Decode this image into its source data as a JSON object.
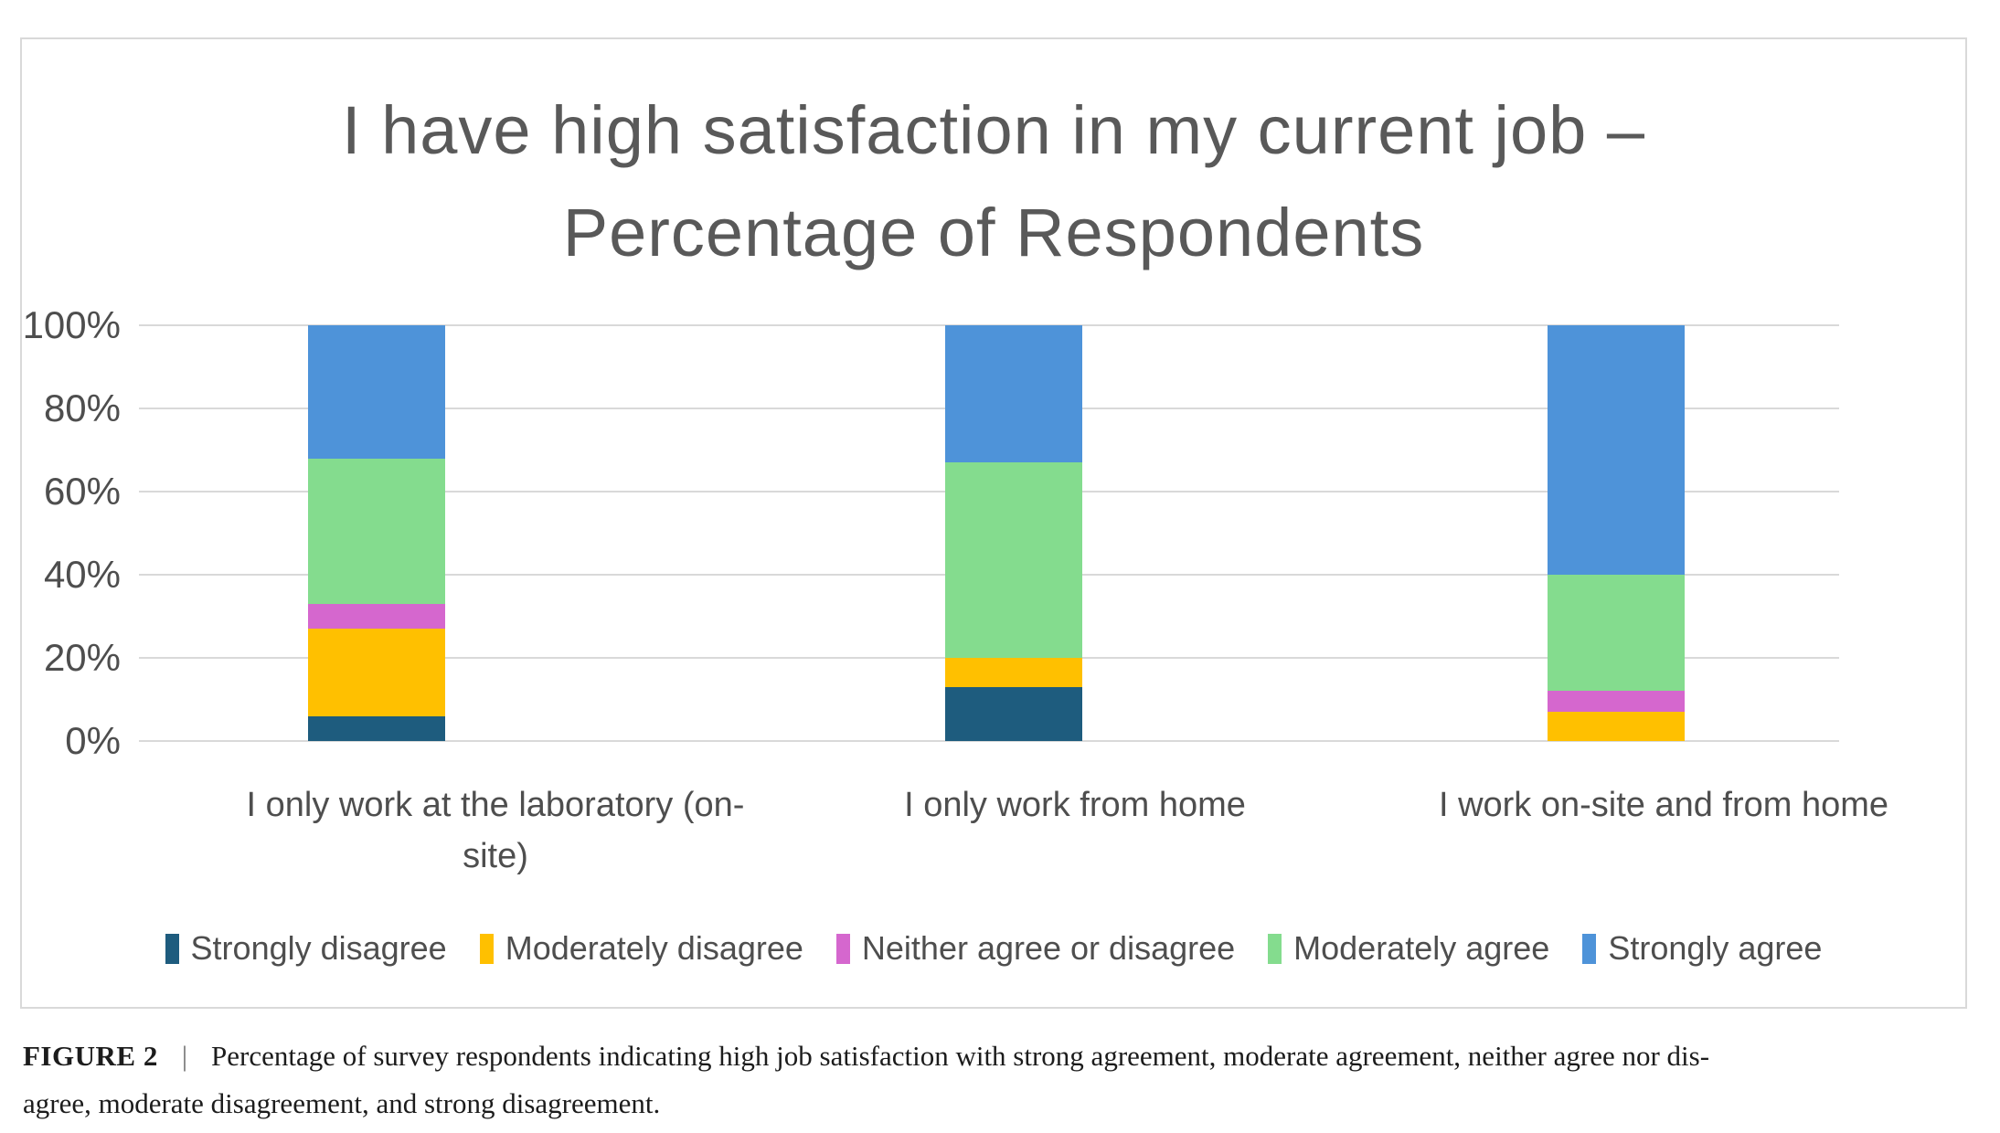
{
  "chart_data": {
    "type": "bar",
    "stacked": true,
    "units": "percent",
    "title": "I have high satisfaction in my current job – Percentage of Respondents",
    "title_lines": [
      "I have high satisfaction in my current job –",
      "Percentage of Respondents"
    ],
    "categories": [
      {
        "label": "I only work at the laboratory (on-site)",
        "label_lines": [
          "I  only work at the laboratory (on-",
          "site)"
        ]
      },
      {
        "label": "I only work from home",
        "label_lines": [
          "I only work from home"
        ]
      },
      {
        "label": "I work on-site and from home",
        "label_lines": [
          "I work on-site and from home"
        ]
      }
    ],
    "series": [
      {
        "name": "Strongly disagree",
        "color": "#1e5c7e",
        "values": [
          6,
          13,
          0
        ]
      },
      {
        "name": "Moderately disagree",
        "color": "#ffc000",
        "values": [
          21,
          7,
          7
        ]
      },
      {
        "name": "Neither agree or disagree",
        "color": "#d567ce",
        "values": [
          6,
          0,
          5
        ]
      },
      {
        "name": "Moderately agree",
        "color": "#84dc8e",
        "values": [
          35,
          47,
          28
        ]
      },
      {
        "name": "Strongly agree",
        "color": "#4e93d9",
        "values": [
          32,
          33,
          60
        ]
      }
    ],
    "y_ticks": [
      "0%",
      "20%",
      "40%",
      "60%",
      "80%",
      "100%"
    ],
    "ylim": [
      0,
      100
    ],
    "grid": true,
    "legend_position": "bottom",
    "xlabel": "",
    "ylabel": ""
  },
  "caption": {
    "label": "FIGURE 2",
    "separator": "|",
    "line1_rest": "Percentage of survey respondents indicating high job satisfaction with strong agreement, moderate agreement, neither agree nor dis-",
    "line2": "agree, moderate disagreement, and strong disagreement."
  },
  "colors": {
    "chart_border": "#d9d9d9",
    "gridline": "#d9d9d9",
    "title_text": "#595959",
    "axis_text": "#4e4e4e",
    "caption_text": "#1c1c1c",
    "background": "#ffffff"
  }
}
